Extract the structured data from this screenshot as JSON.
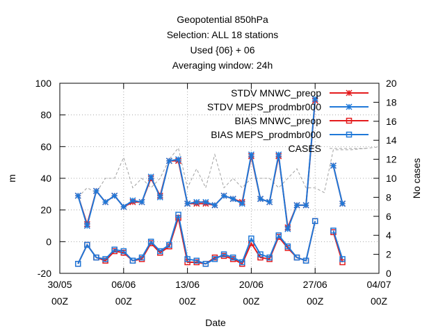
{
  "chart_data": {
    "type": "line",
    "title": [
      "Geopotential 850hPa",
      "Selection: ALL      18 stations",
      "Used {06} + 06",
      "Averaging window: 24h"
    ],
    "xlabel": "Date",
    "ylabel": "m",
    "y2label": "No cases",
    "ylim": [
      -20,
      100
    ],
    "y2lim": [
      0,
      20
    ],
    "yticks": [
      -20,
      0,
      20,
      40,
      60,
      80,
      100
    ],
    "y2ticks": [
      0,
      2,
      4,
      6,
      8,
      10,
      12,
      14,
      16,
      18,
      20
    ],
    "xrange": [
      "2021-05-30 00Z",
      "2021-07-04 00Z"
    ],
    "xticks": [
      {
        "day": 0,
        "line1": "30/05",
        "line2": "00Z"
      },
      {
        "day": 7,
        "line1": "06/06",
        "line2": "00Z"
      },
      {
        "day": 14,
        "line1": "13/06",
        "line2": "00Z"
      },
      {
        "day": 21,
        "line1": "20/06",
        "line2": "00Z"
      },
      {
        "day": 28,
        "line1": "27/06",
        "line2": "00Z"
      },
      {
        "day": 35,
        "line1": "04/07",
        "line2": "00Z"
      }
    ],
    "grid": true,
    "legend_position": "top-right",
    "x_days": [
      2,
      3,
      4,
      5,
      6,
      7,
      8,
      9,
      10,
      11,
      12,
      13,
      14,
      15,
      16,
      17,
      18,
      19,
      20,
      21,
      22,
      23,
      24,
      25,
      26,
      27,
      28,
      29,
      30,
      31
    ],
    "series": [
      {
        "name": "STDV MNWC_preop",
        "axis": "y",
        "color": "#e41a1c",
        "marker": "x",
        "values": [
          29,
          11,
          32,
          25,
          29,
          22,
          25,
          25,
          40,
          29,
          51,
          51,
          24,
          24,
          24,
          23,
          29,
          27,
          25,
          54,
          27,
          25,
          54,
          9,
          23,
          23,
          89,
          null,
          48,
          24
        ]
      },
      {
        "name": "STDV MEPS_prodmbr000",
        "axis": "y",
        "color": "#1f78d8",
        "marker": "x",
        "values": [
          29,
          10,
          32,
          25,
          29,
          22,
          26,
          25,
          41,
          28,
          51,
          52,
          24,
          25,
          25,
          23,
          29,
          27,
          24,
          55,
          27,
          25,
          55,
          8,
          23,
          23,
          90,
          null,
          48,
          24
        ]
      },
      {
        "name": "BIAS MNWC_preop",
        "axis": "y",
        "color": "#e41a1c",
        "marker": "square",
        "values": [
          -14,
          -2,
          -10,
          -12,
          -6,
          -7,
          -12,
          -11,
          -1,
          -7,
          -3,
          15,
          -13,
          -13,
          -14,
          -10,
          -9,
          -11,
          -14,
          -1,
          -10,
          -11,
          3,
          -4,
          -10,
          -12,
          13,
          null,
          6,
          -13
        ]
      },
      {
        "name": "BIAS MEPS_prodmbr000",
        "axis": "y",
        "color": "#1f78d8",
        "marker": "square",
        "values": [
          -14,
          -2,
          -10,
          -11,
          -5,
          -6,
          -12,
          -10,
          0,
          -6,
          -2,
          17,
          -11,
          -12,
          -14,
          -11,
          -8,
          -10,
          -13,
          2,
          -8,
          -10,
          4,
          -3,
          -10,
          -12,
          13,
          null,
          7,
          -11
        ]
      },
      {
        "name": "CASES",
        "axis": "y2",
        "color": "#a0a0a0",
        "marker": "none",
        "dash": "dashed",
        "x_days": [
          2,
          3,
          4,
          5,
          6,
          7,
          8,
          9,
          10,
          11,
          12,
          13,
          14,
          15,
          16,
          17,
          18,
          19,
          20,
          21,
          22,
          23,
          24,
          25,
          26,
          27,
          28,
          29,
          30,
          31,
          32,
          33,
          34,
          35
        ],
        "values": [
          8,
          9,
          8.5,
          10,
          10,
          12.2,
          9,
          10,
          9,
          10,
          12,
          13.2,
          9,
          11,
          9,
          12.5,
          9,
          10,
          9,
          10,
          10,
          10,
          9,
          10,
          11,
          9,
          9,
          8.5,
          13,
          13,
          13,
          13.1,
          13.2,
          13.3
        ]
      }
    ]
  }
}
